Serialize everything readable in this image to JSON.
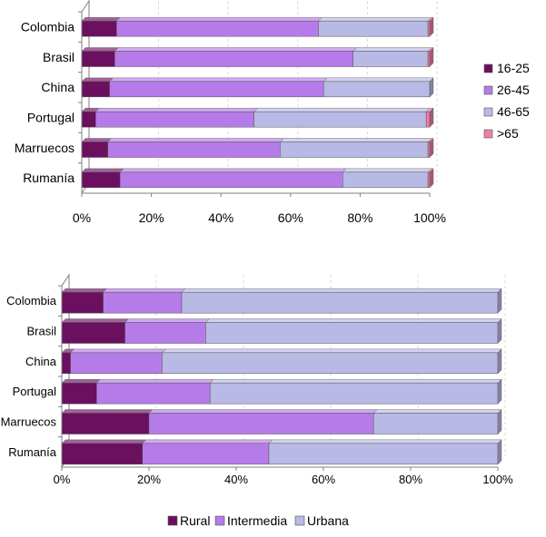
{
  "colors": {
    "16-25": "#6b0f5f",
    "26-45": "#b57be8",
    "46-65": "#b9b9e6",
    ">65": "#ef7fa7",
    "Rural": "#6b0f5f",
    "Intermedia": "#b57be8",
    "Urbana": "#b9b9e6"
  },
  "chart_data": [
    {
      "type": "bar",
      "orientation": "horizontal",
      "stacked": "percent",
      "categories": [
        "Colombia",
        "Brasil",
        "China",
        "Portugal",
        "Marruecos",
        "Rumanía"
      ],
      "xlim": [
        0,
        100
      ],
      "xticks": [
        "0%",
        "20%",
        "40%",
        "60%",
        "80%",
        "100%"
      ],
      "legend_position": "right",
      "series": [
        {
          "name": "16-25",
          "values": [
            10,
            9.5,
            8,
            4,
            7.5,
            11
          ]
        },
        {
          "name": "26-45",
          "values": [
            58,
            68.5,
            61.5,
            45.5,
            49.5,
            64
          ]
        },
        {
          "name": "46-65",
          "values": [
            31.5,
            21.5,
            30.5,
            49.5,
            42.5,
            24.5
          ]
        },
        {
          "name": ">65",
          "values": [
            0.5,
            0.5,
            0,
            1,
            0.5,
            0.5
          ]
        }
      ]
    },
    {
      "type": "bar",
      "orientation": "horizontal",
      "stacked": "percent",
      "categories": [
        "Colombia",
        "Brasil",
        "China",
        "Portugal",
        "Marruecos",
        "Rumanía"
      ],
      "xlim": [
        0,
        100
      ],
      "xticks": [
        "0%",
        "20%",
        "40%",
        "60%",
        "80%",
        "100%"
      ],
      "legend_position": "bottom",
      "series": [
        {
          "name": "Rural",
          "values": [
            9.5,
            14.5,
            2,
            8,
            20,
            18.5
          ]
        },
        {
          "name": "Intermedia",
          "values": [
            18,
            18.5,
            21,
            26,
            51.5,
            29
          ]
        },
        {
          "name": "Urbana",
          "values": [
            72.5,
            67,
            77,
            66,
            28.5,
            52.5
          ]
        }
      ]
    }
  ]
}
